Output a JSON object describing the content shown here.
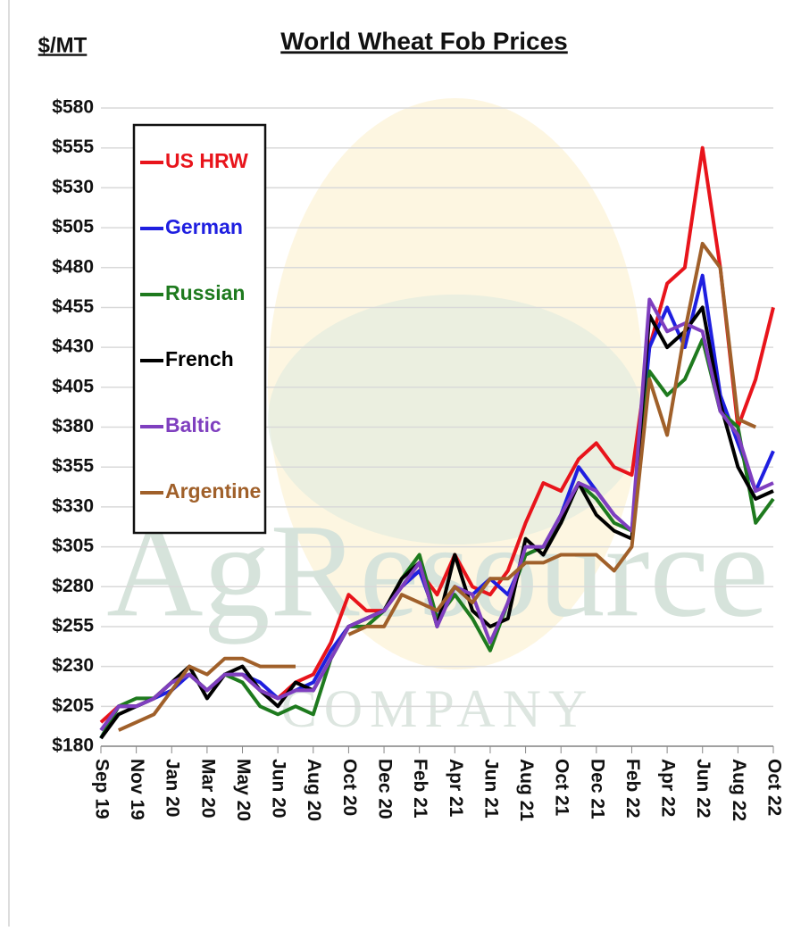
{
  "chart_data": {
    "type": "line",
    "title": "World Wheat Fob Prices",
    "y_label": "$/MT",
    "watermark": "AgResource",
    "watermark_sub": "COMPANY",
    "categories": [
      "Sep 19",
      null,
      "Nov 19",
      null,
      "Jan 20",
      null,
      "Mar 20",
      null,
      "May 20",
      null,
      "Jun 20",
      null,
      "Aug 20",
      null,
      "Oct 20",
      null,
      "Dec 20",
      null,
      "Feb 21",
      null,
      "Apr 21",
      null,
      "Jun 21",
      null,
      "Aug 21",
      null,
      "Oct 21",
      null,
      "Dec 21",
      null,
      "Feb 22",
      null,
      "Apr 22",
      null,
      "Jun 22",
      null,
      "Aug 22",
      null,
      "Oct 22"
    ],
    "ylim": [
      180,
      580
    ],
    "yticks": [
      {
        "value": 180,
        "label": "$180"
      },
      {
        "value": 205,
        "label": "$205"
      },
      {
        "value": 230,
        "label": "$230"
      },
      {
        "value": 255,
        "label": "$255"
      },
      {
        "value": 280,
        "label": "$280"
      },
      {
        "value": 305,
        "label": "$305"
      },
      {
        "value": 330,
        "label": "$330"
      },
      {
        "value": 355,
        "label": "$355"
      },
      {
        "value": 380,
        "label": "$380"
      },
      {
        "value": 405,
        "label": "$405"
      },
      {
        "value": 430,
        "label": "$430"
      },
      {
        "value": 455,
        "label": "$455"
      },
      {
        "value": 480,
        "label": "$480"
      },
      {
        "value": 505,
        "label": "$505"
      },
      {
        "value": 530,
        "label": "$530"
      },
      {
        "value": 555,
        "label": "$555"
      },
      {
        "value": 580,
        "label": "$580"
      }
    ],
    "grid": true,
    "legend": "top-left",
    "series": [
      {
        "name": "US HRW",
        "color": "#e8141b",
        "values": [
          195,
          205,
          205,
          210,
          220,
          225,
          215,
          225,
          225,
          215,
          210,
          220,
          225,
          245,
          275,
          265,
          265,
          280,
          290,
          275,
          300,
          280,
          275,
          290,
          320,
          345,
          340,
          360,
          370,
          355,
          350,
          430,
          470,
          480,
          555,
          480,
          380,
          410,
          455
        ]
      },
      {
        "name": "German",
        "color": "#1f1fe0",
        "values": [
          185,
          205,
          205,
          210,
          215,
          225,
          215,
          225,
          225,
          220,
          210,
          215,
          220,
          240,
          255,
          260,
          265,
          280,
          290,
          260,
          280,
          275,
          285,
          275,
          300,
          305,
          325,
          355,
          340,
          325,
          315,
          430,
          455,
          430,
          475,
          400,
          370,
          340,
          365
        ]
      },
      {
        "name": "Russian",
        "color": "#1e7a1e",
        "values": [
          185,
          205,
          210,
          210,
          220,
          225,
          215,
          225,
          220,
          205,
          200,
          205,
          200,
          235,
          255,
          255,
          265,
          285,
          300,
          260,
          275,
          260,
          240,
          270,
          300,
          305,
          320,
          345,
          335,
          320,
          315,
          415,
          400,
          410,
          435,
          390,
          380,
          320,
          335
        ]
      },
      {
        "name": "French",
        "color": "#000000",
        "values": [
          185,
          200,
          205,
          210,
          220,
          230,
          210,
          225,
          230,
          215,
          205,
          220,
          215,
          235,
          255,
          260,
          265,
          285,
          295,
          255,
          300,
          265,
          255,
          260,
          310,
          300,
          320,
          345,
          325,
          315,
          310,
          450,
          430,
          440,
          455,
          395,
          355,
          335,
          340
        ]
      },
      {
        "name": "Baltic",
        "color": "#7f3fbf",
        "values": [
          190,
          205,
          205,
          210,
          220,
          225,
          215,
          225,
          225,
          215,
          210,
          215,
          215,
          235,
          255,
          260,
          265,
          280,
          295,
          255,
          280,
          275,
          245,
          270,
          305,
          305,
          325,
          345,
          340,
          325,
          315,
          460,
          440,
          445,
          440,
          390,
          375,
          340,
          345
        ]
      },
      {
        "name": "Argentine",
        "color": "#a0602a",
        "values": [
          null,
          190,
          195,
          200,
          215,
          230,
          225,
          235,
          235,
          230,
          230,
          230,
          null,
          null,
          250,
          255,
          255,
          275,
          270,
          265,
          280,
          270,
          285,
          285,
          295,
          295,
          300,
          300,
          300,
          290,
          305,
          410,
          375,
          440,
          495,
          480,
          385,
          380,
          null
        ]
      }
    ]
  }
}
